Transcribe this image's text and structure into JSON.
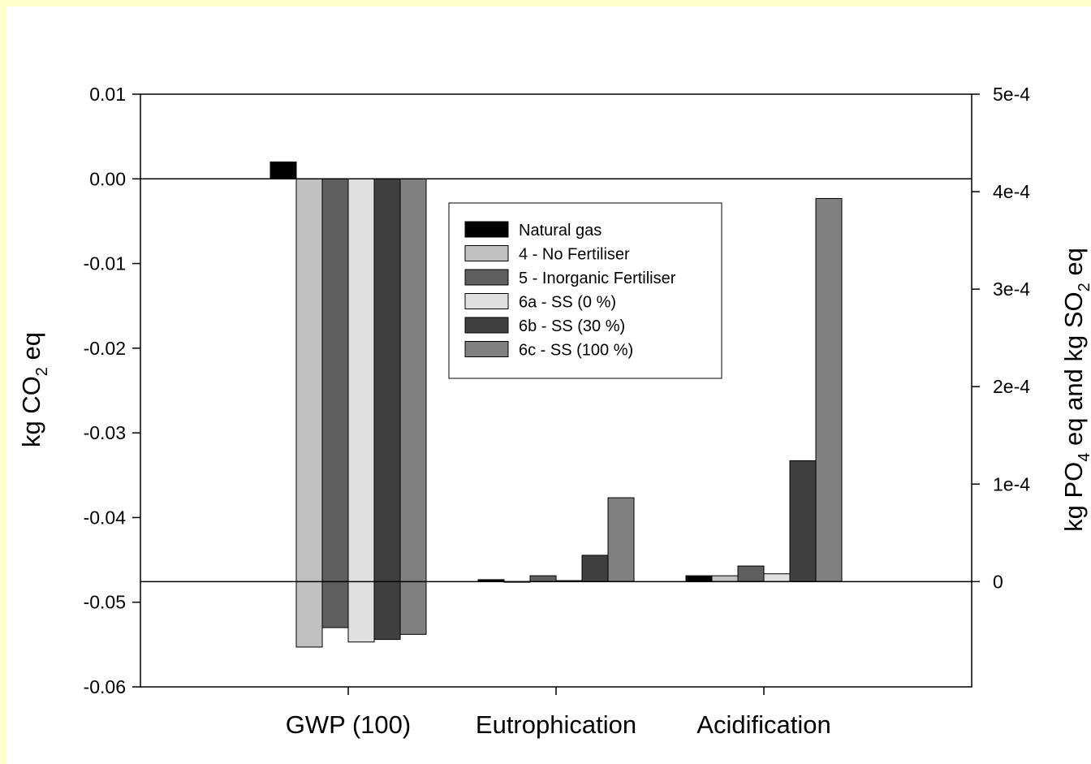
{
  "chart_data": {
    "type": "bar",
    "categories": [
      "GWP (100)",
      "Eutrophication",
      "Acidification"
    ],
    "left_axis": {
      "label_parts": [
        "kg CO",
        "2",
        " eq"
      ],
      "ylim": [
        -0.06,
        0.01
      ],
      "ticks": [
        0.01,
        0.0,
        -0.01,
        -0.02,
        -0.03,
        -0.04,
        -0.05,
        -0.06
      ],
      "tick_labels": [
        "0.01",
        "0.00",
        "-0.01",
        "-0.02",
        "-0.03",
        "-0.04",
        "-0.05",
        "-0.06"
      ]
    },
    "right_axis": {
      "label_parts": [
        "kg PO",
        "4",
        " eq and kg SO",
        "2",
        " eq"
      ],
      "ylim": [
        -0.000108,
        0.0005
      ],
      "ticks": [
        0.0005,
        0.0004,
        0.0003,
        0.0002,
        0.0001,
        0
      ],
      "tick_labels": [
        "5e-4",
        "4e-4",
        "3e-4",
        "2e-4",
        "1e-4",
        "0"
      ]
    },
    "series": [
      {
        "name": "Natural gas",
        "color": "#000000",
        "values": [
          0.002,
          2e-06,
          6e-06
        ]
      },
      {
        "name": "4 - No Fertiliser",
        "color": "#c0c0c0",
        "values": [
          -0.0553,
          0.0,
          6e-06
        ]
      },
      {
        "name": "5 - Inorganic Fertiliser",
        "color": "#5f5f5f",
        "values": [
          -0.053,
          6e-06,
          1.6e-05
        ]
      },
      {
        "name": "6a - SS (0 %)",
        "color": "#e0e0e0",
        "values": [
          -0.0547,
          1e-06,
          8e-06
        ]
      },
      {
        "name": "6b - SS (30 %)",
        "color": "#404040",
        "values": [
          -0.0544,
          2.7e-05,
          0.000124
        ]
      },
      {
        "name": "6c - SS (100 %)",
        "color": "#808080",
        "values": [
          -0.0538,
          8.6e-05,
          0.000393
        ]
      }
    ],
    "series_axis": [
      "left",
      "right",
      "right"
    ],
    "legend_position": "top-center",
    "grid": false
  }
}
